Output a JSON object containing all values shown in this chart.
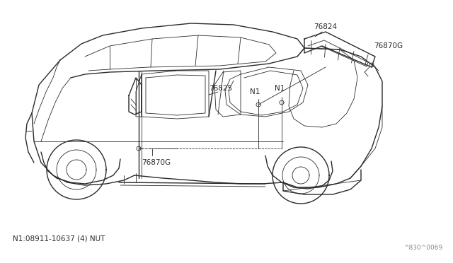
{
  "bg_color": "#ffffff",
  "line_color": "#2a2a2a",
  "label_color": "#2a2a2a",
  "fig_width": 6.4,
  "fig_height": 3.72,
  "dpi": 100,
  "footnote": "N1:08911-10637 (4) NUT",
  "ref_code": "^830^0069"
}
